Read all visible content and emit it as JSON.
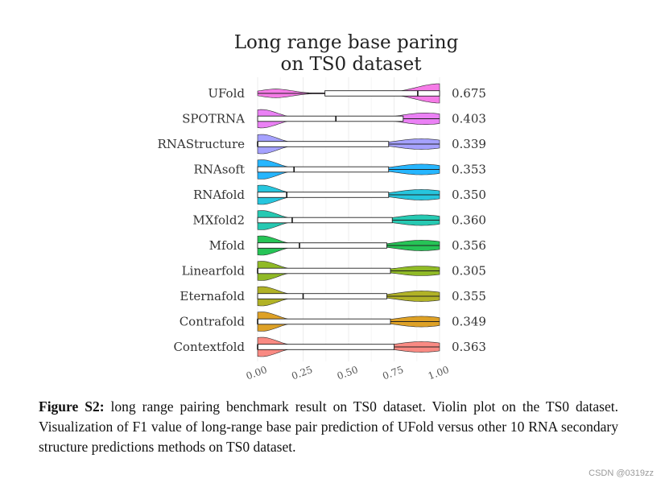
{
  "chart_data": {
    "type": "violin",
    "title": [
      "Long range base paring",
      "on TS0 dataset"
    ],
    "xlim": [
      0,
      1
    ],
    "xticks": [
      "0.00",
      "0.25",
      "0.50",
      "0.75",
      "1.00"
    ],
    "tick_values": [
      0,
      0.25,
      0.5,
      0.75,
      1.0
    ],
    "grid": true,
    "series": [
      {
        "name": "UFold",
        "value_label": "0.675",
        "color": "#F564E3",
        "min": 0.0,
        "q1": 0.37,
        "median": 0.88,
        "q3": 1.0,
        "max": 1.0,
        "peak_left": 0.1,
        "peak_right": 1.0,
        "left_height": 0.45,
        "right_height": 1.0
      },
      {
        "name": "SPOTRNA",
        "value_label": "0.403",
        "color": "#E76BF3",
        "min": 0.0,
        "q1": 0.0,
        "median": 0.43,
        "q3": 0.8,
        "max": 1.0,
        "peak_left": 0.02,
        "peak_right": 0.92,
        "left_height": 0.95,
        "right_height": 0.6
      },
      {
        "name": "RNAStructure",
        "value_label": "0.339",
        "color": "#9590FF",
        "min": 0.0,
        "q1": 0.0,
        "median": 0.0,
        "q3": 0.72,
        "max": 1.0,
        "peak_left": 0.02,
        "peak_right": 0.9,
        "left_height": 1.0,
        "right_height": 0.55
      },
      {
        "name": "RNAsoft",
        "value_label": "0.353",
        "color": "#00A9FF",
        "min": 0.0,
        "q1": 0.0,
        "median": 0.2,
        "q3": 0.72,
        "max": 1.0,
        "peak_left": 0.02,
        "peak_right": 0.9,
        "left_height": 1.0,
        "right_height": 0.55
      },
      {
        "name": "RNAfold",
        "value_label": "0.350",
        "color": "#00BCD8",
        "min": 0.0,
        "q1": 0.0,
        "median": 0.16,
        "q3": 0.72,
        "max": 1.0,
        "peak_left": 0.02,
        "peak_right": 0.9,
        "left_height": 1.0,
        "right_height": 0.55
      },
      {
        "name": "MXfold2",
        "value_label": "0.360",
        "color": "#00BFA5",
        "min": 0.0,
        "q1": 0.0,
        "median": 0.19,
        "q3": 0.74,
        "max": 1.0,
        "peak_left": 0.02,
        "peak_right": 0.9,
        "left_height": 1.0,
        "right_height": 0.55
      },
      {
        "name": "Mfold",
        "value_label": "0.356",
        "color": "#00BA38",
        "min": 0.0,
        "q1": 0.0,
        "median": 0.23,
        "q3": 0.71,
        "max": 1.0,
        "peak_left": 0.02,
        "peak_right": 0.9,
        "left_height": 1.0,
        "right_height": 0.55
      },
      {
        "name": "Linearfold",
        "value_label": "0.305",
        "color": "#7CAE00",
        "min": 0.0,
        "q1": 0.0,
        "median": 0.0,
        "q3": 0.73,
        "max": 1.0,
        "peak_left": 0.02,
        "peak_right": 0.9,
        "left_height": 1.0,
        "right_height": 0.5
      },
      {
        "name": "Eternafold",
        "value_label": "0.355",
        "color": "#A3A500",
        "min": 0.0,
        "q1": 0.0,
        "median": 0.25,
        "q3": 0.71,
        "max": 1.0,
        "peak_left": 0.02,
        "peak_right": 0.9,
        "left_height": 1.0,
        "right_height": 0.55
      },
      {
        "name": "Contrafold",
        "value_label": "0.349",
        "color": "#D89000",
        "min": 0.0,
        "q1": 0.0,
        "median": 0.0,
        "q3": 0.73,
        "max": 1.0,
        "peak_left": 0.02,
        "peak_right": 0.9,
        "left_height": 1.0,
        "right_height": 0.55
      },
      {
        "name": "Contextfold",
        "value_label": "0.363",
        "color": "#F8766D",
        "min": 0.0,
        "q1": 0.0,
        "median": 0.0,
        "q3": 0.75,
        "max": 1.0,
        "peak_left": 0.02,
        "peak_right": 0.9,
        "left_height": 1.0,
        "right_height": 0.55
      }
    ]
  },
  "caption": {
    "label": "Figure S2:",
    "text": "long range pairing benchmark result on TS0 dataset. Violin plot on the TS0 dataset. Visualization of F1 value of long-range base pair prediction of UFold versus other 10 RNA secondary structure predictions methods on TS0 dataset."
  },
  "watermark": "CSDN @0319zz"
}
